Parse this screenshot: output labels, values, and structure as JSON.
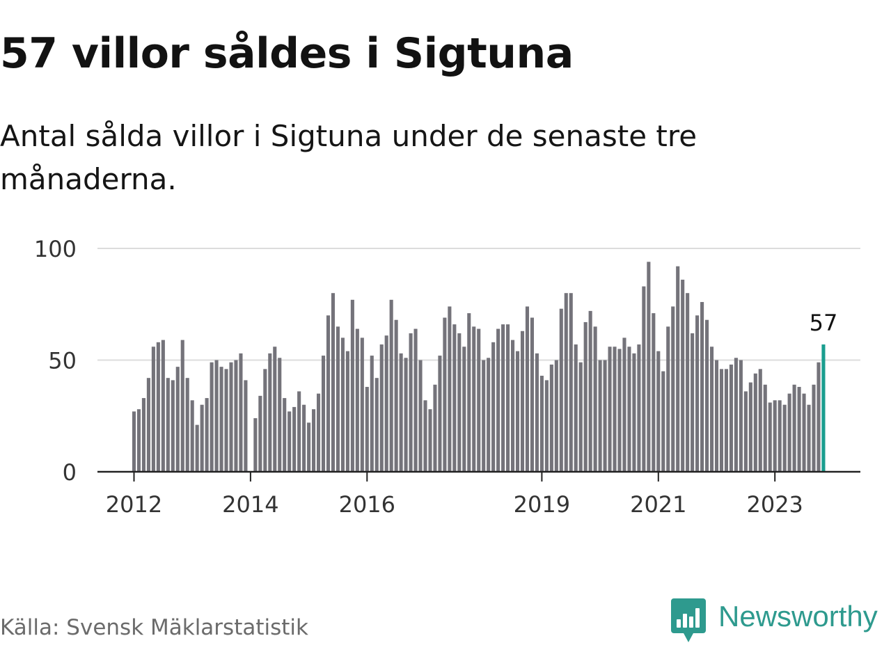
{
  "header": {
    "title": "57 villor såldes i Sigtuna",
    "subtitle": "Antal sålda villor i Sigtuna under de senaste tre månaderna."
  },
  "footer": {
    "source": "Källa: Svensk Mäklarstatistik",
    "brand": "Newsworthy"
  },
  "colors": {
    "bar": "#74737a",
    "highlight": "#1a9e8f",
    "grid": "#dcdcdc",
    "axis": "#222222",
    "brand": "#2e9a8e"
  },
  "chart_data": {
    "type": "bar",
    "title": "",
    "xlabel": "",
    "ylabel": "",
    "ylim": [
      0,
      100
    ],
    "yticks": [
      0,
      50,
      100
    ],
    "start": "2012-01",
    "xtick_labels": [
      {
        "label": "2012",
        "index": 0
      },
      {
        "label": "2014",
        "index": 24
      },
      {
        "label": "2016",
        "index": 48
      },
      {
        "label": "2019",
        "index": 84
      },
      {
        "label": "2021",
        "index": 108
      },
      {
        "label": "2023",
        "index": 132
      }
    ],
    "values": [
      27,
      28,
      33,
      42,
      56,
      58,
      59,
      42,
      41,
      47,
      59,
      42,
      32,
      21,
      30,
      33,
      49,
      50,
      47,
      46,
      49,
      50,
      53,
      41,
      0,
      24,
      34,
      46,
      53,
      56,
      51,
      33,
      27,
      29,
      36,
      30,
      22,
      28,
      35,
      52,
      70,
      80,
      65,
      60,
      54,
      77,
      64,
      60,
      38,
      52,
      42,
      57,
      61,
      77,
      68,
      53,
      51,
      62,
      64,
      50,
      32,
      28,
      39,
      52,
      69,
      74,
      66,
      62,
      56,
      71,
      65,
      64,
      50,
      51,
      58,
      64,
      66,
      66,
      59,
      54,
      63,
      74,
      69,
      53,
      43,
      41,
      48,
      50,
      73,
      80,
      80,
      57,
      49,
      67,
      72,
      65,
      50,
      50,
      56,
      56,
      55,
      60,
      56,
      53,
      57,
      83,
      94,
      71,
      54,
      45,
      65,
      74,
      92,
      86,
      80,
      62,
      70,
      76,
      68,
      56,
      50,
      46,
      46,
      48,
      51,
      50,
      36,
      40,
      44,
      46,
      39,
      31,
      32,
      32,
      30,
      35,
      39,
      38,
      35,
      30,
      39,
      49,
      57
    ],
    "highlight_index": 142,
    "highlight_label": "57"
  }
}
